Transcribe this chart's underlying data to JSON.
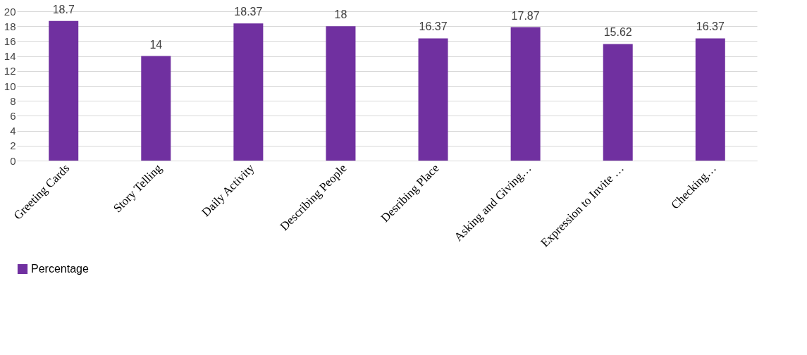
{
  "chart_data": {
    "type": "bar",
    "categories": [
      "Greeting Cards",
      "Story Telling",
      "Daily Activity",
      "Describing People",
      "Desribing Place",
      "Asking and Giving…",
      "Expression to Invite …",
      "Checking…"
    ],
    "series": [
      {
        "name": "Percentage",
        "color": "#7030a0",
        "values": [
          18.7,
          14,
          18.37,
          18,
          16.37,
          17.87,
          15.62,
          16.37
        ]
      }
    ],
    "ylim": [
      0,
      20
    ],
    "yticks": [
      0,
      2,
      4,
      6,
      8,
      10,
      12,
      14,
      16,
      18,
      20
    ],
    "grid": "y",
    "legend": "bottom",
    "data_labels": true
  }
}
